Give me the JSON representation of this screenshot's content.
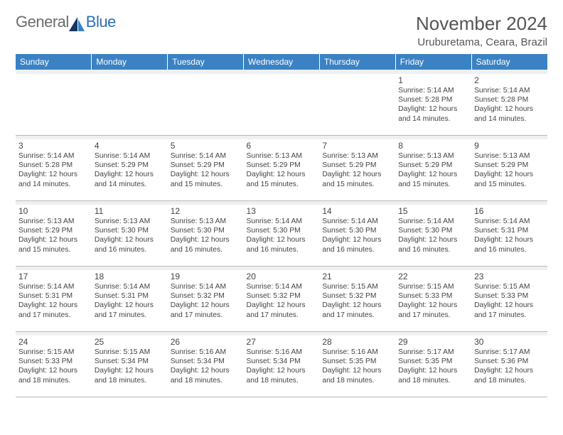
{
  "logo": {
    "text1": "General",
    "text2": "Blue"
  },
  "title": "November 2024",
  "location": "Uruburetama, Ceara, Brazil",
  "colors": {
    "header_bg": "#3b82c4",
    "header_fg": "#ffffff",
    "spacer_bg": "#eef0f2",
    "text": "#444444",
    "logo_gray": "#6b6b6b",
    "logo_blue": "#2b6fb5"
  },
  "weekdays": [
    "Sunday",
    "Monday",
    "Tuesday",
    "Wednesday",
    "Thursday",
    "Friday",
    "Saturday"
  ],
  "weeks": [
    [
      null,
      null,
      null,
      null,
      null,
      {
        "n": "1",
        "sr": "Sunrise: 5:14 AM",
        "ss": "Sunset: 5:28 PM",
        "d1": "Daylight: 12 hours",
        "d2": "and 14 minutes."
      },
      {
        "n": "2",
        "sr": "Sunrise: 5:14 AM",
        "ss": "Sunset: 5:28 PM",
        "d1": "Daylight: 12 hours",
        "d2": "and 14 minutes."
      }
    ],
    [
      {
        "n": "3",
        "sr": "Sunrise: 5:14 AM",
        "ss": "Sunset: 5:28 PM",
        "d1": "Daylight: 12 hours",
        "d2": "and 14 minutes."
      },
      {
        "n": "4",
        "sr": "Sunrise: 5:14 AM",
        "ss": "Sunset: 5:29 PM",
        "d1": "Daylight: 12 hours",
        "d2": "and 14 minutes."
      },
      {
        "n": "5",
        "sr": "Sunrise: 5:14 AM",
        "ss": "Sunset: 5:29 PM",
        "d1": "Daylight: 12 hours",
        "d2": "and 15 minutes."
      },
      {
        "n": "6",
        "sr": "Sunrise: 5:13 AM",
        "ss": "Sunset: 5:29 PM",
        "d1": "Daylight: 12 hours",
        "d2": "and 15 minutes."
      },
      {
        "n": "7",
        "sr": "Sunrise: 5:13 AM",
        "ss": "Sunset: 5:29 PM",
        "d1": "Daylight: 12 hours",
        "d2": "and 15 minutes."
      },
      {
        "n": "8",
        "sr": "Sunrise: 5:13 AM",
        "ss": "Sunset: 5:29 PM",
        "d1": "Daylight: 12 hours",
        "d2": "and 15 minutes."
      },
      {
        "n": "9",
        "sr": "Sunrise: 5:13 AM",
        "ss": "Sunset: 5:29 PM",
        "d1": "Daylight: 12 hours",
        "d2": "and 15 minutes."
      }
    ],
    [
      {
        "n": "10",
        "sr": "Sunrise: 5:13 AM",
        "ss": "Sunset: 5:29 PM",
        "d1": "Daylight: 12 hours",
        "d2": "and 15 minutes."
      },
      {
        "n": "11",
        "sr": "Sunrise: 5:13 AM",
        "ss": "Sunset: 5:30 PM",
        "d1": "Daylight: 12 hours",
        "d2": "and 16 minutes."
      },
      {
        "n": "12",
        "sr": "Sunrise: 5:13 AM",
        "ss": "Sunset: 5:30 PM",
        "d1": "Daylight: 12 hours",
        "d2": "and 16 minutes."
      },
      {
        "n": "13",
        "sr": "Sunrise: 5:14 AM",
        "ss": "Sunset: 5:30 PM",
        "d1": "Daylight: 12 hours",
        "d2": "and 16 minutes."
      },
      {
        "n": "14",
        "sr": "Sunrise: 5:14 AM",
        "ss": "Sunset: 5:30 PM",
        "d1": "Daylight: 12 hours",
        "d2": "and 16 minutes."
      },
      {
        "n": "15",
        "sr": "Sunrise: 5:14 AM",
        "ss": "Sunset: 5:30 PM",
        "d1": "Daylight: 12 hours",
        "d2": "and 16 minutes."
      },
      {
        "n": "16",
        "sr": "Sunrise: 5:14 AM",
        "ss": "Sunset: 5:31 PM",
        "d1": "Daylight: 12 hours",
        "d2": "and 16 minutes."
      }
    ],
    [
      {
        "n": "17",
        "sr": "Sunrise: 5:14 AM",
        "ss": "Sunset: 5:31 PM",
        "d1": "Daylight: 12 hours",
        "d2": "and 17 minutes."
      },
      {
        "n": "18",
        "sr": "Sunrise: 5:14 AM",
        "ss": "Sunset: 5:31 PM",
        "d1": "Daylight: 12 hours",
        "d2": "and 17 minutes."
      },
      {
        "n": "19",
        "sr": "Sunrise: 5:14 AM",
        "ss": "Sunset: 5:32 PM",
        "d1": "Daylight: 12 hours",
        "d2": "and 17 minutes."
      },
      {
        "n": "20",
        "sr": "Sunrise: 5:14 AM",
        "ss": "Sunset: 5:32 PM",
        "d1": "Daylight: 12 hours",
        "d2": "and 17 minutes."
      },
      {
        "n": "21",
        "sr": "Sunrise: 5:15 AM",
        "ss": "Sunset: 5:32 PM",
        "d1": "Daylight: 12 hours",
        "d2": "and 17 minutes."
      },
      {
        "n": "22",
        "sr": "Sunrise: 5:15 AM",
        "ss": "Sunset: 5:33 PM",
        "d1": "Daylight: 12 hours",
        "d2": "and 17 minutes."
      },
      {
        "n": "23",
        "sr": "Sunrise: 5:15 AM",
        "ss": "Sunset: 5:33 PM",
        "d1": "Daylight: 12 hours",
        "d2": "and 17 minutes."
      }
    ],
    [
      {
        "n": "24",
        "sr": "Sunrise: 5:15 AM",
        "ss": "Sunset: 5:33 PM",
        "d1": "Daylight: 12 hours",
        "d2": "and 18 minutes."
      },
      {
        "n": "25",
        "sr": "Sunrise: 5:15 AM",
        "ss": "Sunset: 5:34 PM",
        "d1": "Daylight: 12 hours",
        "d2": "and 18 minutes."
      },
      {
        "n": "26",
        "sr": "Sunrise: 5:16 AM",
        "ss": "Sunset: 5:34 PM",
        "d1": "Daylight: 12 hours",
        "d2": "and 18 minutes."
      },
      {
        "n": "27",
        "sr": "Sunrise: 5:16 AM",
        "ss": "Sunset: 5:34 PM",
        "d1": "Daylight: 12 hours",
        "d2": "and 18 minutes."
      },
      {
        "n": "28",
        "sr": "Sunrise: 5:16 AM",
        "ss": "Sunset: 5:35 PM",
        "d1": "Daylight: 12 hours",
        "d2": "and 18 minutes."
      },
      {
        "n": "29",
        "sr": "Sunrise: 5:17 AM",
        "ss": "Sunset: 5:35 PM",
        "d1": "Daylight: 12 hours",
        "d2": "and 18 minutes."
      },
      {
        "n": "30",
        "sr": "Sunrise: 5:17 AM",
        "ss": "Sunset: 5:36 PM",
        "d1": "Daylight: 12 hours",
        "d2": "and 18 minutes."
      }
    ]
  ]
}
